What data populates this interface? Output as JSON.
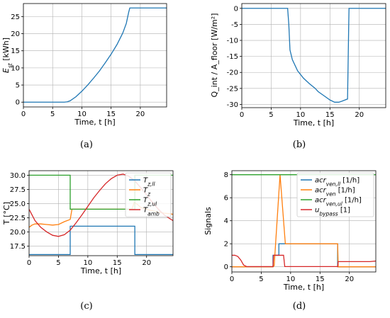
{
  "chart_data": [
    {
      "type": "line",
      "caption": "(a)",
      "xlabel": "Time, t [h]",
      "ylabel": "E_st [kWh]",
      "xlim": [
        0,
        24.5
      ],
      "ylim": [
        -1.4,
        28.8
      ],
      "xticks": [
        0,
        5,
        10,
        15,
        20
      ],
      "yticks": [
        0,
        5,
        10,
        15,
        20,
        25
      ],
      "grid": true,
      "series": [
        {
          "name": "",
          "color": "#1f77b4",
          "x": [
            0,
            7,
            7.5,
            8,
            9,
            10,
            11,
            12,
            13,
            14,
            15,
            16,
            17,
            17.6,
            18,
            18.2,
            24.5
          ],
          "y": [
            0,
            0,
            0.1,
            0.4,
            1.6,
            3.2,
            5.0,
            7.0,
            9.1,
            11.5,
            14.0,
            16.8,
            20.2,
            23.0,
            26.2,
            27.5,
            27.5
          ]
        }
      ]
    },
    {
      "type": "line",
      "caption": "(b)",
      "xlabel": "Time, t [h]",
      "ylabel": "Q_int / A_floor [W/m²]",
      "xlim": [
        0,
        24.5
      ],
      "ylim": [
        -31,
        1.5
      ],
      "xticks": [
        0,
        5,
        10,
        15,
        20
      ],
      "yticks": [
        0,
        -5,
        -10,
        -15,
        -20,
        -25,
        -30
      ],
      "grid": true,
      "series": [
        {
          "name": "",
          "color": "#1f77b4",
          "x": [
            0,
            7.8,
            8.0,
            8.2,
            8.6,
            9.5,
            10.5,
            11.5,
            12.5,
            13.0,
            14.0,
            15.0,
            15.8,
            16.5,
            17.0,
            18.0,
            18.2,
            18.25,
            24.5
          ],
          "y": [
            0,
            0,
            -5,
            -13,
            -16,
            -19.5,
            -21.8,
            -23.5,
            -25.0,
            -26.0,
            -27.3,
            -28.6,
            -29.3,
            -29.3,
            -29.0,
            -28.3,
            -5,
            0,
            0
          ]
        }
      ]
    },
    {
      "type": "line",
      "caption": "(c)",
      "xlabel": "Time, t [h]",
      "ylabel": "T [°C]",
      "xlim": [
        0,
        24.5
      ],
      "ylim": [
        15.8,
        30.8
      ],
      "xticks": [
        0,
        5,
        10,
        15,
        20
      ],
      "yticks": [
        17.5,
        20.0,
        22.5,
        25.0,
        27.5,
        30.0
      ],
      "grid": true,
      "legend_position": "top-right",
      "series": [
        {
          "name": "T_z,ll",
          "color": "#1f77b4",
          "x": [
            0,
            7,
            7,
            18,
            18,
            24.5
          ],
          "y": [
            16,
            16,
            21,
            21,
            16,
            16
          ]
        },
        {
          "name": "T_z",
          "color": "#ff7f0e",
          "x": [
            0,
            0.5,
            1,
            2,
            3,
            4,
            5,
            6,
            7,
            7.3,
            12,
            15,
            17.5,
            17.9,
            18.5,
            19,
            20,
            21,
            22,
            23,
            24,
            24.5
          ],
          "y": [
            20.8,
            21.2,
            21.4,
            21.4,
            21.3,
            21.2,
            21.3,
            21.8,
            22.2,
            24.0,
            24.0,
            24.0,
            24.0,
            25.2,
            24.8,
            24.3,
            24.0,
            23.7,
            23.5,
            23.3,
            23.2,
            23.1
          ]
        },
        {
          "name": "T_z,ul",
          "color": "#2ca02c",
          "x": [
            0,
            7,
            7,
            18,
            18,
            24.5
          ],
          "y": [
            30,
            30,
            24,
            24,
            30,
            30
          ]
        },
        {
          "name": "T_amb",
          "color": "#d62728",
          "x": [
            0,
            1,
            2,
            3,
            4,
            5,
            6,
            7,
            8,
            9,
            10,
            11,
            12,
            13,
            14,
            15,
            16,
            17,
            18,
            19,
            20,
            21,
            22,
            23,
            24,
            24.5
          ],
          "y": [
            24.0,
            22.0,
            20.8,
            20.0,
            19.4,
            19.2,
            19.5,
            20.3,
            21.6,
            23.0,
            24.5,
            26.0,
            27.3,
            28.5,
            29.4,
            30.0,
            30.2,
            29.8,
            29.0,
            27.8,
            26.5,
            25.2,
            24.0,
            23.0,
            22.3,
            22.0
          ]
        }
      ]
    },
    {
      "type": "line",
      "caption": "(d)",
      "xlabel": "Time, t [h]",
      "ylabel": "Signals",
      "xlim": [
        0,
        24.5
      ],
      "ylim": [
        -0.45,
        8.35
      ],
      "xticks": [
        0,
        5,
        10,
        15,
        20
      ],
      "yticks": [
        0,
        2,
        4,
        6,
        8
      ],
      "grid": true,
      "legend_position": "top-right",
      "series": [
        {
          "name": "acr_ven,ll [1/h]",
          "color": "#1f77b4",
          "x": [
            0,
            7,
            7,
            8,
            8,
            18,
            18,
            24.5
          ],
          "y": [
            0,
            0,
            1,
            1,
            2,
            2,
            0,
            0
          ]
        },
        {
          "name": "acr_ven [1/h]",
          "color": "#ff7f0e",
          "x": [
            0,
            7,
            7.2,
            8.2,
            9.1,
            9.2,
            18,
            18.1,
            24.5
          ],
          "y": [
            0,
            0,
            0.1,
            8,
            2,
            2,
            2,
            0,
            0
          ]
        },
        {
          "name": "acr_ven,ul [1/h]",
          "color": "#2ca02c",
          "x": [
            0,
            24.5
          ],
          "y": [
            8,
            8
          ]
        },
        {
          "name": "u_bypass [1]",
          "color": "#d62728",
          "x": [
            0,
            0.5,
            1.0,
            1.5,
            2.0,
            2.5,
            7,
            7.1,
            8.8,
            9.0,
            18,
            18.1,
            23.5,
            24.5
          ],
          "y": [
            1.0,
            1.0,
            0.9,
            0.6,
            0.15,
            0.02,
            0.02,
            1.0,
            1.0,
            0.02,
            0.02,
            0.45,
            0.45,
            0.5
          ]
        }
      ]
    }
  ]
}
